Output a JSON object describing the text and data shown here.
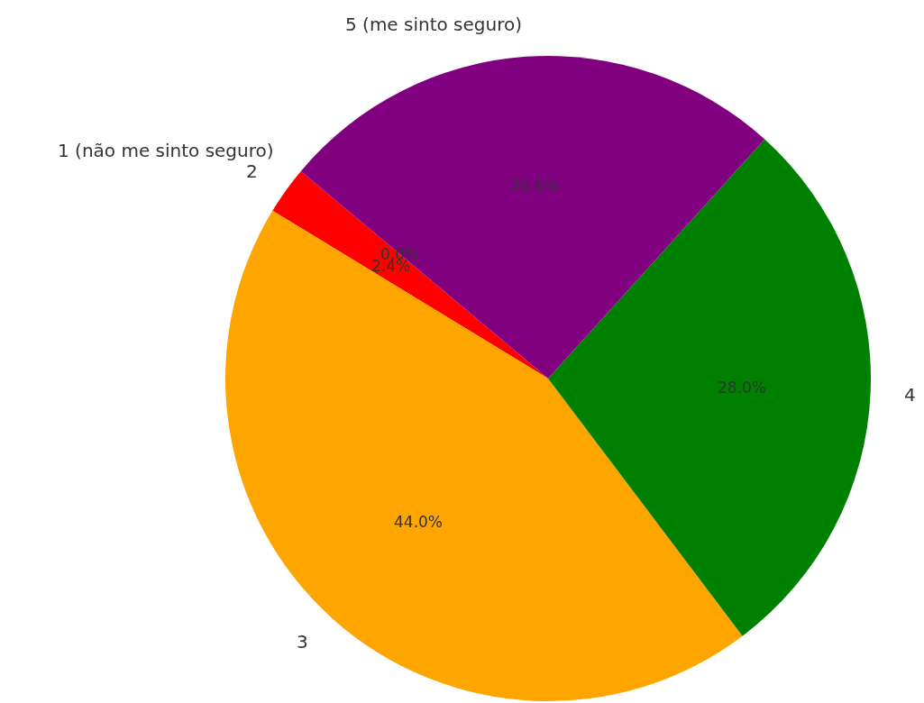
{
  "chart_data": {
    "type": "pie",
    "categories": [
      "1 (não me sinto seguro)",
      "2",
      "3",
      "4",
      "5 (me sinto seguro)"
    ],
    "values": [
      0.0,
      2.4,
      44.0,
      28.0,
      25.6
    ],
    "colors": [
      "#1f77b4",
      "#ff0000",
      "#ffa500",
      "#008000",
      "#800080"
    ],
    "value_labels": [
      "0.0%",
      "2.4%",
      "44.0%",
      "28.0%",
      "25.6%"
    ],
    "legend": false
  }
}
